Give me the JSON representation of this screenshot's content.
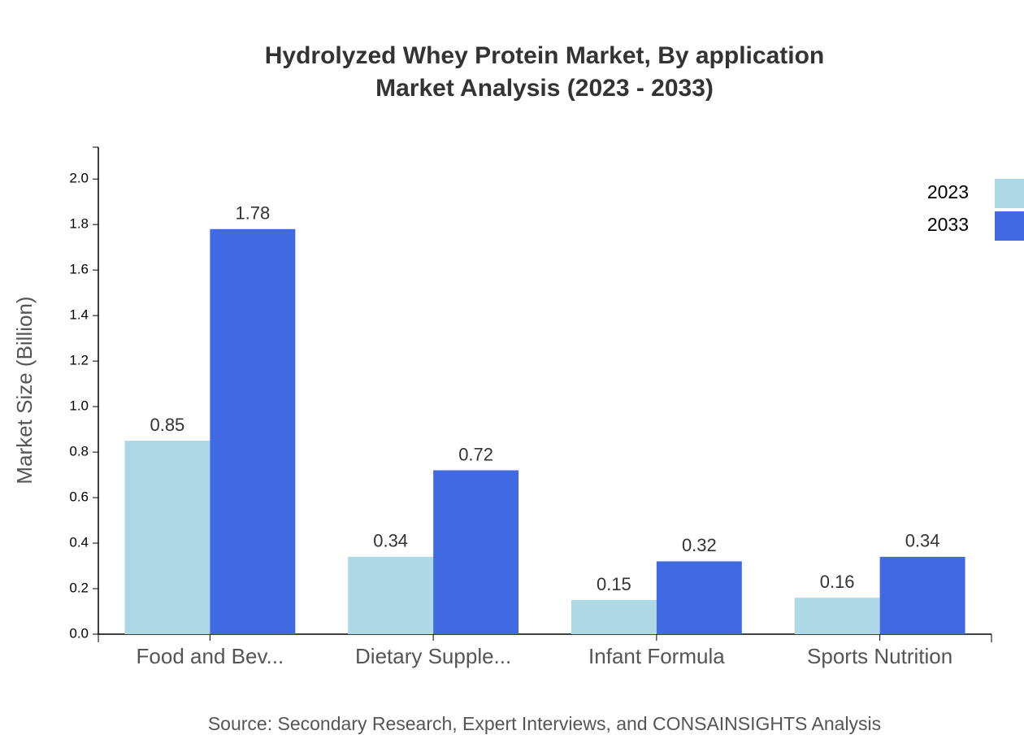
{
  "chart_data": {
    "type": "bar",
    "title": "Hydrolyzed Whey Protein Market, By application",
    "subtitle": "Market Analysis (2023 - 2033)",
    "y_label": "Market Size (Billion)",
    "source": "Source: Secondary Research, Expert Interviews, and CONSAINSIGHTS Analysis",
    "categories": [
      "Food and Bev...",
      "Dietary Supple...",
      "Infant Formula",
      "Sports Nutrition"
    ],
    "series": [
      {
        "name": "2023",
        "color": "#add8e6",
        "values": [
          0.85,
          0.34,
          0.15,
          0.16
        ]
      },
      {
        "name": "2033",
        "color": "#4169e1",
        "values": [
          1.78,
          0.72,
          0.32,
          0.34
        ]
      }
    ],
    "ylim": [
      0,
      2.14
    ],
    "yticks": [
      {
        "value": 0,
        "label": "0.0"
      },
      0.2,
      0.4,
      0.6,
      0.8,
      {
        "value": 1,
        "label": "1.0"
      },
      1.2,
      1.4,
      1.6,
      1.8,
      {
        "value": 2,
        "label": "2.0"
      }
    ],
    "legend": "top-right"
  }
}
